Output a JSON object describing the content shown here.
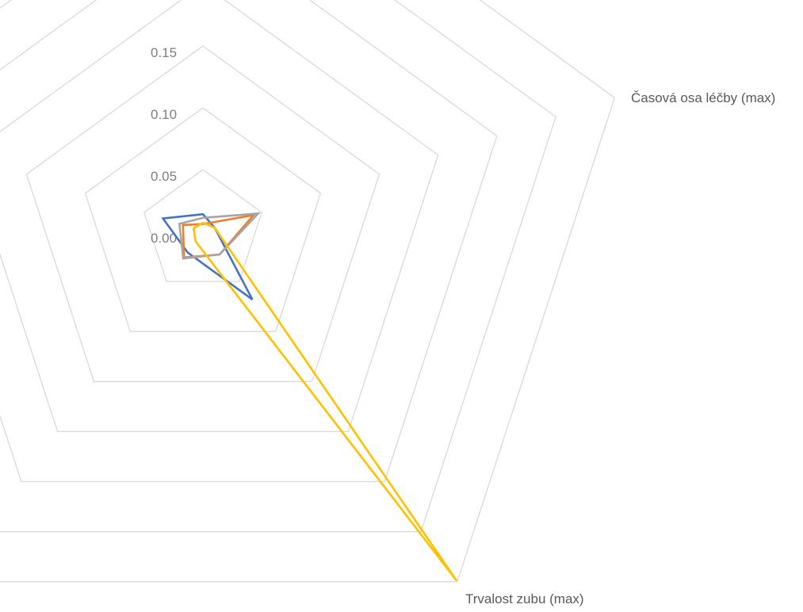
{
  "chart_data": {
    "type": "radar",
    "title": "",
    "categories": [
      "",
      "Časová osa léčby (max)",
      "Trvalost zubu (max)",
      "",
      ""
    ],
    "r_ticks": [
      0.0,
      0.05,
      0.1,
      0.15,
      0.2,
      0.25,
      0.3,
      0.35
    ],
    "r_tick_labels": [
      "0.00",
      "0.05",
      "0.10",
      "0.15",
      "",
      "",
      "",
      ""
    ],
    "rlim": [
      0,
      0.35
    ],
    "grid": true,
    "legend": "none",
    "series": [
      {
        "color": "#4472c4",
        "values": [
          0.014,
          0.01,
          0.068,
          0.021,
          0.034
        ]
      },
      {
        "color": "#ed7d31",
        "values": [
          0.006,
          0.043,
          0.023,
          0.026,
          0.017
        ]
      },
      {
        "color": "#a5a5a5",
        "values": [
          0.011,
          0.047,
          0.023,
          0.027,
          0.02
        ]
      },
      {
        "color": "#ffc000",
        "values": [
          0.007,
          0.01,
          0.349,
          0.01,
          0.008
        ]
      }
    ]
  }
}
